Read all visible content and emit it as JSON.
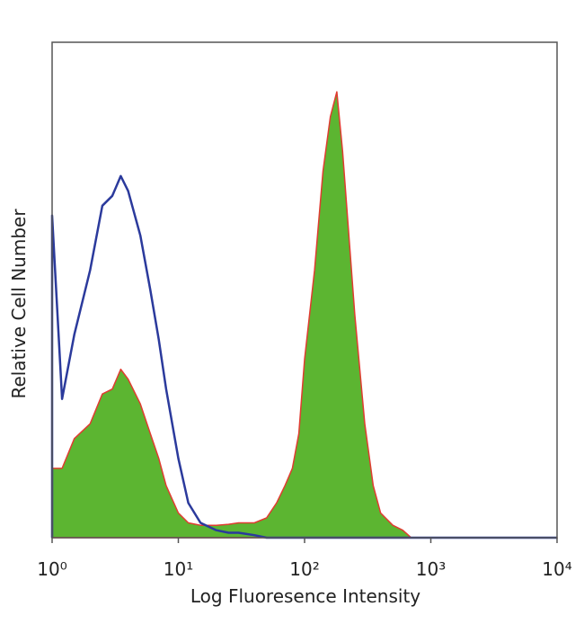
{
  "chart_data": {
    "type": "histogram",
    "x_label": "Log Fluoresence Intensity",
    "y_label": "Relative Cell Number",
    "xscale": "log",
    "xlim": [
      1,
      10000
    ],
    "ylim": [
      0,
      100
    ],
    "xticks": [
      {
        "value": 1,
        "label": "10⁰"
      },
      {
        "value": 10,
        "label": "10¹"
      },
      {
        "value": 100,
        "label": "10²"
      },
      {
        "value": 1000,
        "label": "10³"
      },
      {
        "value": 10000,
        "label": "10⁴"
      }
    ],
    "x": [
      1,
      1.2,
      1.5,
      2,
      2.5,
      3,
      3.5,
      4,
      5,
      6,
      7,
      8,
      10,
      12,
      15,
      20,
      25,
      30,
      40,
      50,
      60,
      70,
      80,
      90,
      100,
      120,
      140,
      160,
      180,
      200,
      250,
      300,
      350,
      400,
      500,
      600,
      700,
      1000,
      10000
    ],
    "series": [
      {
        "color": "#e03c31",
        "fill": "#5cb531",
        "values": [
          14,
          14,
          20,
          23,
          29,
          30,
          34,
          32,
          27,
          21,
          16,
          10.5,
          5,
          3,
          2.5,
          2.5,
          2.7,
          3,
          3,
          4,
          7,
          10.5,
          14,
          21,
          36,
          54,
          74,
          85,
          90,
          78,
          45,
          23,
          10.5,
          5,
          2.5,
          1.5,
          0,
          0,
          0
        ]
      },
      {
        "color": "#2b3a9c",
        "values": [
          65,
          28,
          41,
          54,
          67,
          69,
          73,
          70,
          61,
          50,
          40,
          30,
          16,
          7,
          3,
          1.5,
          1,
          1,
          0.5,
          0,
          0,
          0,
          0,
          0,
          0,
          0,
          0,
          0,
          0,
          0,
          0,
          0,
          0,
          0,
          0,
          0,
          0,
          0,
          0
        ]
      }
    ]
  }
}
